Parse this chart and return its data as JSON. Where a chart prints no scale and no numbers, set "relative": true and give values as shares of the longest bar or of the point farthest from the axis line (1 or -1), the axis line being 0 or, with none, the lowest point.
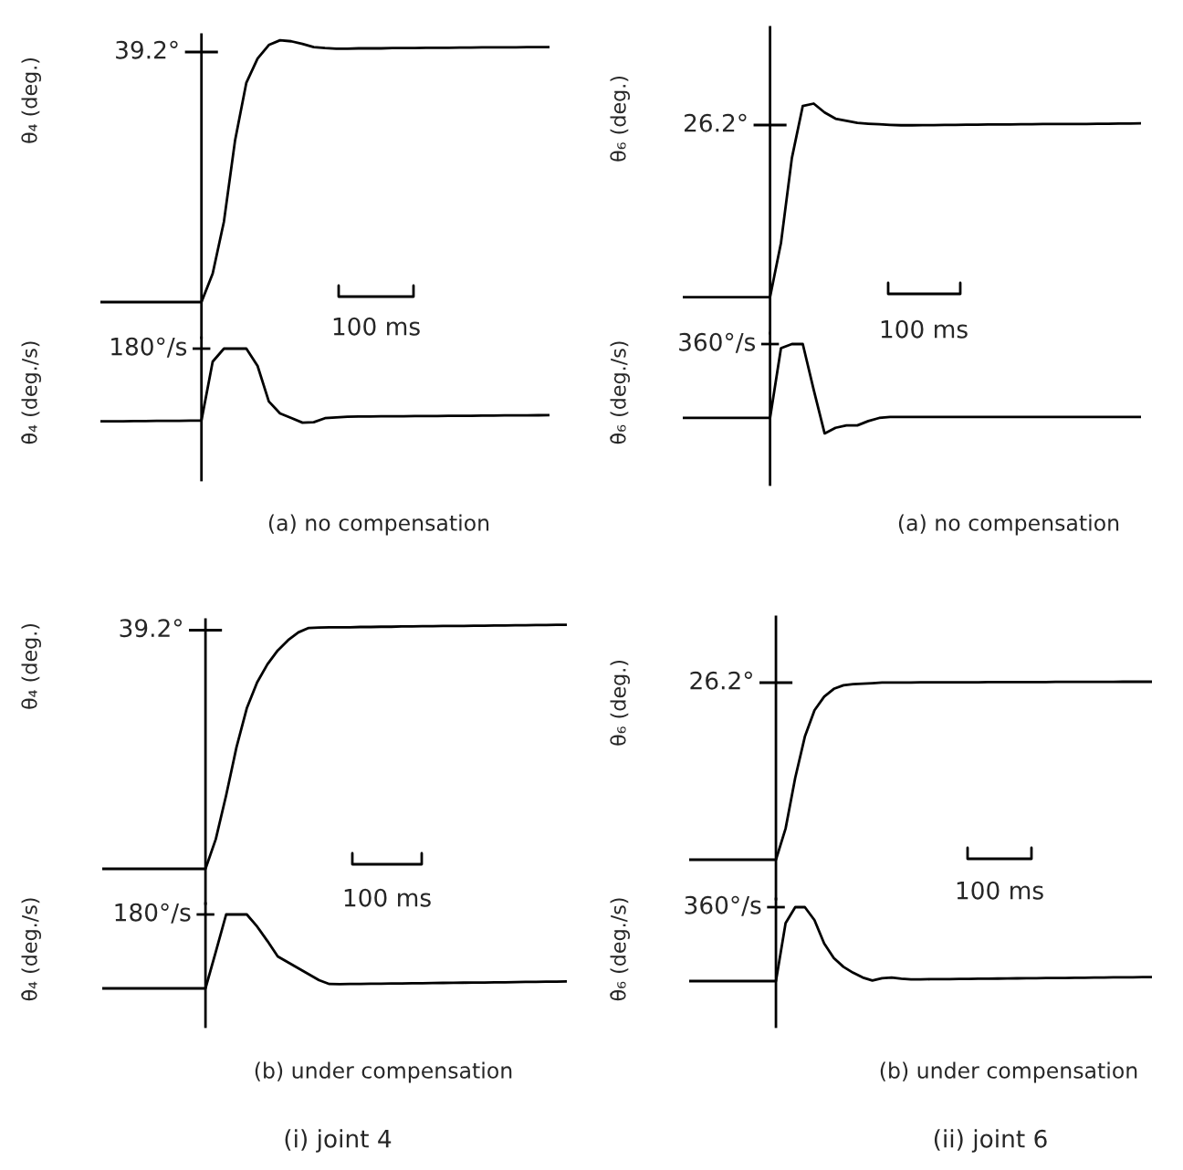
{
  "chart_data": [
    {
      "type": "line",
      "relative": true,
      "ylabel": "θ₄ (deg.)",
      "categories": [
        null,
        null,
        null,
        null,
        null,
        null,
        null,
        null,
        null,
        null,
        null,
        null,
        null,
        null,
        null,
        null,
        null,
        null,
        null,
        null,
        null,
        null,
        null,
        null,
        null,
        null,
        null,
        null,
        null,
        null,
        null,
        null,
        null,
        null,
        null,
        null,
        null,
        null,
        null,
        null,
        null
      ],
      "annotations": [
        "39.2°",
        "100 ms"
      ],
      "series": [
        {
          "color": "#000000",
          "values": [
            0,
            0,
            0,
            0,
            0,
            0,
            0,
            0,
            0,
            0,
            0.109,
            0.307,
            0.619,
            0.838,
            0.93,
            0.982,
            1,
            0.996,
            0.986,
            0.974,
            0.97,
            0.968,
            0.968,
            0.969,
            0.969,
            0.969,
            0.97,
            0.97,
            0.97,
            0.971,
            0.971,
            0.971,
            0.972,
            0.972,
            0.973,
            0.973,
            0.973,
            0.973,
            0.974,
            0.974,
            0.974
          ]
        }
      ]
    },
    {
      "type": "line",
      "relative": true,
      "title": "(a) no compensation",
      "ylabel": "θ̇₄ (deg./s)",
      "categories": [
        null,
        null,
        null,
        null,
        null,
        null,
        null,
        null,
        null,
        null,
        null,
        null,
        null,
        null,
        null,
        null,
        null,
        null,
        null,
        null,
        null,
        null,
        null,
        null,
        null,
        null,
        null,
        null,
        null,
        null,
        null,
        null,
        null,
        null,
        null,
        null,
        null,
        null,
        null,
        null,
        null
      ],
      "annotations": [
        "180°/s"
      ],
      "series": [
        {
          "color": "#000000",
          "values": [
            0.017,
            0.018,
            0.019,
            0.02,
            0.021,
            0.023,
            0.024,
            0.025,
            0.027,
            0.028,
            0.824,
            1,
            1,
            1,
            0.766,
            0.287,
            0.125,
            0.063,
            0,
            0.006,
            0.06,
            0.07,
            0.081,
            0.082,
            0.083,
            0.085,
            0.086,
            0.087,
            0.088,
            0.088,
            0.09,
            0.091,
            0.092,
            0.093,
            0.094,
            0.095,
            0.097,
            0.098,
            0.099,
            0.1,
            0.101
          ]
        }
      ]
    },
    {
      "type": "line",
      "relative": true,
      "ylabel": "θ₆ (deg.)",
      "categories": [
        null,
        null,
        null,
        null,
        null,
        null,
        null,
        null,
        null,
        null,
        null,
        null,
        null,
        null,
        null,
        null,
        null,
        null,
        null,
        null,
        null,
        null,
        null,
        null,
        null,
        null,
        null,
        null,
        null,
        null,
        null,
        null,
        null,
        null,
        null,
        null,
        null,
        null,
        null,
        null,
        null,
        null,
        null
      ],
      "annotations": [
        "26.2°",
        "100 ms"
      ],
      "series": [
        {
          "color": "#000000",
          "values": [
            0,
            0,
            0,
            0,
            0,
            0,
            0,
            0,
            0,
            0.28,
            0.719,
            0.988,
            1,
            0.954,
            0.922,
            0.911,
            0.9,
            0.896,
            0.893,
            0.89,
            0.888,
            0.888,
            0.889,
            0.889,
            0.89,
            0.89,
            0.891,
            0.891,
            0.892,
            0.892,
            0.892,
            0.893,
            0.893,
            0.894,
            0.894,
            0.895,
            0.895,
            0.895,
            0.896,
            0.896,
            0.897,
            0.897,
            0.898
          ]
        }
      ]
    },
    {
      "type": "line",
      "relative": true,
      "title": "(a) no compensation",
      "ylabel": "θ̇₆ (deg./s)",
      "categories": [
        null,
        null,
        null,
        null,
        null,
        null,
        null,
        null,
        null,
        null,
        null,
        null,
        null,
        null,
        null,
        null,
        null,
        null,
        null,
        null,
        null,
        null,
        null,
        null,
        null,
        null,
        null,
        null,
        null,
        null,
        null,
        null,
        null,
        null,
        null,
        null,
        null,
        null,
        null,
        null,
        null,
        null,
        null
      ],
      "annotations": [
        "360°/s"
      ],
      "series": [
        {
          "color": "#000000",
          "values": [
            0.173,
            0.173,
            0.173,
            0.173,
            0.173,
            0.173,
            0.173,
            0.173,
            0.173,
            0.954,
            1,
            1,
            0.488,
            0,
            0.063,
            0.09,
            0.09,
            0.138,
            0.173,
            0.184,
            0.184,
            0.184,
            0.184,
            0.184,
            0.184,
            0.184,
            0.184,
            0.184,
            0.184,
            0.184,
            0.184,
            0.184,
            0.184,
            0.184,
            0.184,
            0.184,
            0.184,
            0.184,
            0.184,
            0.184,
            0.184,
            0.184,
            0.184
          ]
        }
      ]
    },
    {
      "type": "line",
      "relative": true,
      "ylabel": "θ₄ (deg.)",
      "categories": [
        null,
        null,
        null,
        null,
        null,
        null,
        null,
        null,
        null,
        null,
        null,
        null,
        null,
        null,
        null,
        null,
        null,
        null,
        null,
        null,
        null,
        null,
        null,
        null,
        null,
        null,
        null,
        null,
        null,
        null,
        null,
        null,
        null,
        null,
        null,
        null,
        null,
        null,
        null,
        null,
        null,
        null,
        null,
        null,
        null,
        null
      ],
      "annotations": [
        "39.2°",
        "100 ms"
      ],
      "series": [
        {
          "color": "#000000",
          "values": [
            0,
            0,
            0,
            0,
            0,
            0,
            0,
            0,
            0,
            0,
            0,
            0.122,
            0.301,
            0.498,
            0.658,
            0.764,
            0.838,
            0.895,
            0.937,
            0.969,
            0.987,
            0.989,
            0.99,
            0.99,
            0.99,
            0.991,
            0.991,
            0.992,
            0.992,
            0.993,
            0.993,
            0.994,
            0.994,
            0.995,
            0.995,
            0.995,
            0.996,
            0.996,
            0.997,
            0.997,
            0.998,
            0.998,
            0.999,
            0.999,
            1,
            1
          ]
        }
      ]
    },
    {
      "type": "line",
      "relative": true,
      "title": "(b) under compensation",
      "ylabel": "θ̇₄ (deg./s)",
      "categories": [
        null,
        null,
        null,
        null,
        null,
        null,
        null,
        null,
        null,
        null,
        null,
        null,
        null,
        null,
        null,
        null,
        null,
        null,
        null,
        null,
        null,
        null,
        null,
        null,
        null,
        null,
        null,
        null,
        null,
        null,
        null,
        null,
        null,
        null,
        null,
        null,
        null,
        null,
        null,
        null,
        null,
        null,
        null,
        null,
        null,
        null
      ],
      "annotations": [
        "180°/s",
        "(i) joint 4"
      ],
      "series": [
        {
          "color": "#000000",
          "values": [
            0,
            0,
            0,
            0,
            0,
            0,
            0,
            0,
            0,
            0,
            0,
            0.495,
            1,
            1,
            1,
            0.837,
            0.641,
            0.433,
            0.352,
            0.272,
            0.191,
            0.111,
            0.059,
            0.058,
            0.059,
            0.061,
            0.062,
            0.064,
            0.066,
            0.067,
            0.069,
            0.07,
            0.072,
            0.074,
            0.075,
            0.077,
            0.079,
            0.08,
            0.082,
            0.083,
            0.085,
            0.087,
            0.088,
            0.09,
            0.091,
            0.093
          ]
        }
      ]
    },
    {
      "type": "line",
      "relative": true,
      "ylabel": "θ₆ (deg.)",
      "categories": [
        null,
        null,
        null,
        null,
        null,
        null,
        null,
        null,
        null,
        null,
        null,
        null,
        null,
        null,
        null,
        null,
        null,
        null,
        null,
        null,
        null,
        null,
        null,
        null,
        null,
        null,
        null,
        null,
        null,
        null,
        null,
        null,
        null,
        null,
        null,
        null,
        null,
        null,
        null,
        null,
        null,
        null,
        null,
        null,
        null,
        null,
        null,
        null,
        null
      ],
      "annotations": [
        "26.2°",
        "100 ms"
      ],
      "series": [
        {
          "color": "#000000",
          "values": [
            0,
            0,
            0,
            0,
            0,
            0,
            0,
            0,
            0,
            0,
            0.175,
            0.46,
            0.692,
            0.84,
            0.916,
            0.96,
            0.98,
            0.987,
            0.989,
            0.992,
            0.995,
            0.996,
            0.996,
            0.996,
            0.997,
            0.997,
            0.997,
            0.997,
            0.997,
            0.997,
            0.997,
            0.998,
            0.998,
            0.998,
            0.998,
            0.998,
            0.998,
            0.998,
            0.999,
            0.999,
            0.999,
            0.999,
            0.999,
            0.999,
            0.999,
            1,
            1,
            1,
            1
          ]
        }
      ]
    },
    {
      "type": "line",
      "relative": true,
      "title": "(b) under compensation",
      "ylabel": "θ̇₆ (deg./s)",
      "categories": [
        null,
        null,
        null,
        null,
        null,
        null,
        null,
        null,
        null,
        null,
        null,
        null,
        null,
        null,
        null,
        null,
        null,
        null,
        null,
        null,
        null,
        null,
        null,
        null,
        null,
        null,
        null,
        null,
        null,
        null,
        null,
        null,
        null,
        null,
        null,
        null,
        null,
        null,
        null,
        null,
        null,
        null,
        null,
        null,
        null,
        null,
        null,
        null,
        null
      ],
      "annotations": [
        "360°/s",
        "(ii) joint 6"
      ],
      "series": [
        {
          "color": "#000000",
          "values": [
            0,
            0,
            0,
            0,
            0,
            0,
            0,
            0,
            0,
            0,
            0.783,
            1,
            1,
            0.824,
            0.509,
            0.313,
            0.193,
            0.113,
            0.048,
            0.008,
            0.039,
            0.048,
            0.032,
            0.023,
            0.024,
            0.025,
            0.026,
            0.027,
            0.029,
            0.03,
            0.032,
            0.033,
            0.034,
            0.036,
            0.037,
            0.038,
            0.039,
            0.041,
            0.042,
            0.043,
            0.045,
            0.046,
            0.047,
            0.049,
            0.05,
            0.051,
            0.052,
            0.054,
            0.055
          ]
        }
      ]
    }
  ]
}
